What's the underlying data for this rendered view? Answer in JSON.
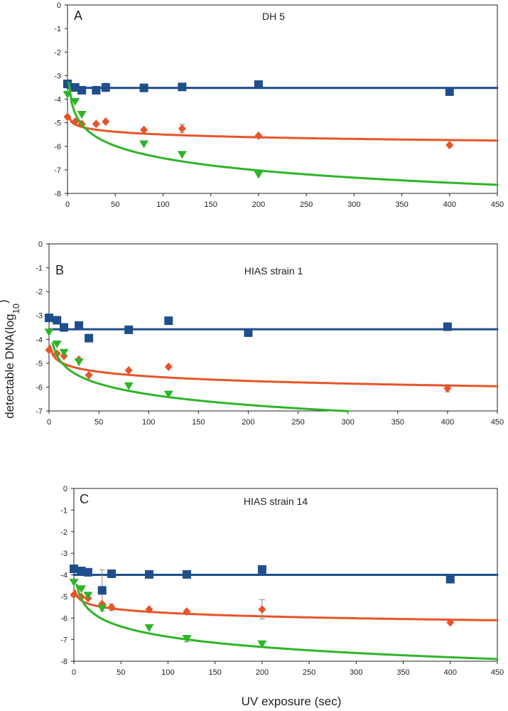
{
  "figure": {
    "ylabel": "detectable DNA(log",
    "ylabel_sub": "10",
    "ylabel_close": ")",
    "xlabel": "UV exposure (sec)"
  },
  "chart_data": [
    {
      "type": "scatter",
      "panel": "A",
      "title": "DH 5",
      "xlim": [
        0,
        450
      ],
      "ylim": [
        -8,
        0
      ],
      "xticks": [
        0,
        50,
        100,
        150,
        200,
        250,
        300,
        350,
        400,
        450
      ],
      "yticks": [
        0,
        -1,
        -2,
        -3,
        -4,
        -5,
        -6,
        -7,
        -8
      ],
      "xlabel": "",
      "ylabel": "",
      "series": [
        {
          "name": "blue",
          "color": "#1f4e8c",
          "marker": "square",
          "x": [
            0,
            8,
            15,
            30,
            40,
            80,
            120,
            200,
            400
          ],
          "y": [
            -3.35,
            -3.5,
            -3.62,
            -3.62,
            -3.5,
            -3.52,
            -3.48,
            -3.38,
            -3.68
          ],
          "err": [
            0,
            0,
            0,
            0,
            0.18,
            0,
            0,
            0,
            0
          ],
          "fit": {
            "kind": "const",
            "a": -3.52,
            "xmax": 450
          }
        },
        {
          "name": "orange",
          "color": "#e8542a",
          "marker": "diamond",
          "x": [
            0,
            8,
            15,
            30,
            40,
            80,
            120,
            200,
            400
          ],
          "y": [
            -4.75,
            -4.95,
            -5.05,
            -5.05,
            -4.95,
            -5.3,
            -5.25,
            -5.55,
            -5.95
          ],
          "err": [
            0,
            0,
            0,
            0,
            0,
            0,
            0.18,
            0,
            0
          ],
          "fit": {
            "kind": "log",
            "a": -4.72,
            "b": -0.1695,
            "xmin": 1,
            "xmax": 450
          }
        },
        {
          "name": "green",
          "color": "#2db528",
          "marker": "triangle-down",
          "x": [
            0,
            8,
            15,
            80,
            120,
            200
          ],
          "y": [
            -3.8,
            -4.1,
            -4.65,
            -5.9,
            -6.35,
            -7.2
          ],
          "err": [
            0,
            0,
            0,
            0,
            0,
            0
          ],
          "fit": {
            "kind": "log",
            "a": -3.04,
            "b": -0.7522,
            "xmin": 1.4,
            "xmax": 450
          }
        }
      ]
    },
    {
      "type": "scatter",
      "panel": "B",
      "title": "HIAS strain 1",
      "xlim": [
        0,
        450
      ],
      "ylim": [
        -7,
        0
      ],
      "xticks": [
        0,
        50,
        100,
        150,
        200,
        250,
        300,
        350,
        400,
        450
      ],
      "yticks": [
        0,
        -1,
        -2,
        -3,
        -4,
        -5,
        -6,
        -7
      ],
      "xlabel": "",
      "ylabel": "",
      "series": [
        {
          "name": "blue",
          "color": "#1f4e8c",
          "marker": "square",
          "x": [
            0,
            8,
            15,
            30,
            40,
            80,
            120,
            200,
            400
          ],
          "y": [
            -3.1,
            -3.2,
            -3.5,
            -3.42,
            -3.95,
            -3.6,
            -3.22,
            -3.72,
            -3.47
          ],
          "err": [
            0,
            0,
            0,
            0,
            0,
            0,
            0,
            0,
            0
          ],
          "fit": {
            "kind": "const",
            "a": -3.58,
            "xmax": 450
          }
        },
        {
          "name": "orange",
          "color": "#e8542a",
          "marker": "diamond",
          "x": [
            0,
            8,
            15,
            30,
            40,
            80,
            120,
            400
          ],
          "y": [
            -4.45,
            -4.6,
            -4.7,
            -4.85,
            -5.5,
            -5.3,
            -5.15,
            -6.05
          ],
          "err": [
            0,
            0,
            0,
            0,
            0,
            0,
            0,
            0.15
          ],
          "fit": {
            "kind": "log",
            "a": -4.28,
            "b": -0.2758,
            "xmin": 1,
            "xmax": 450
          }
        },
        {
          "name": "green",
          "color": "#2db528",
          "marker": "triangle-down",
          "x": [
            0,
            8,
            15,
            30,
            80,
            120
          ],
          "y": [
            -3.7,
            -4.2,
            -4.55,
            -4.95,
            -5.95,
            -6.3
          ],
          "err": [
            0,
            0,
            0,
            0,
            0,
            0
          ],
          "fit": {
            "kind": "log",
            "a": -3.34,
            "b": -0.6431,
            "xmin": 3.6,
            "xmax": 300
          }
        }
      ]
    },
    {
      "type": "scatter",
      "panel": "C",
      "title": "HIAS strain 14",
      "xlim": [
        0,
        450
      ],
      "ylim": [
        -8,
        0
      ],
      "xticks": [
        0,
        50,
        100,
        150,
        200,
        250,
        300,
        350,
        400,
        450
      ],
      "yticks": [
        0,
        -1,
        -2,
        -3,
        -4,
        -5,
        -6,
        -7,
        -8
      ],
      "xlabel": "",
      "ylabel": "",
      "series": [
        {
          "name": "blue",
          "color": "#1f4e8c",
          "marker": "square",
          "x": [
            0,
            8,
            15,
            30,
            40,
            80,
            120,
            200,
            400
          ],
          "y": [
            -3.72,
            -3.82,
            -3.88,
            -4.72,
            -3.95,
            -3.98,
            -3.98,
            -3.75,
            -4.2
          ],
          "err": [
            0,
            0,
            0,
            0.95,
            0,
            0,
            0,
            0,
            0
          ],
          "fit": {
            "kind": "const",
            "a": -4.0,
            "xmax": 450
          }
        },
        {
          "name": "orange",
          "color": "#e8542a",
          "marker": "diamond",
          "x": [
            0,
            8,
            15,
            30,
            40,
            80,
            120,
            200,
            400
          ],
          "y": [
            -4.92,
            -5.02,
            -5.08,
            -5.35,
            -5.5,
            -5.6,
            -5.7,
            -5.6,
            -6.2
          ],
          "err": [
            0,
            0,
            0,
            0,
            0.15,
            0,
            0,
            0.45,
            0
          ],
          "fit": {
            "kind": "log",
            "a": -4.72,
            "b": -0.2264,
            "xmin": 1,
            "xmax": 450
          }
        },
        {
          "name": "green",
          "color": "#2db528",
          "marker": "triangle-down",
          "x": [
            0,
            8,
            15,
            30,
            80,
            120,
            200
          ],
          "y": [
            -4.35,
            -4.65,
            -4.95,
            -5.55,
            -6.45,
            -6.95,
            -7.2
          ],
          "err": [
            0,
            0,
            0,
            0,
            0,
            0.15,
            0
          ],
          "fit": {
            "kind": "log",
            "a": -3.71,
            "b": -0.6853,
            "xmin": 3,
            "xmax": 450
          }
        }
      ]
    }
  ]
}
